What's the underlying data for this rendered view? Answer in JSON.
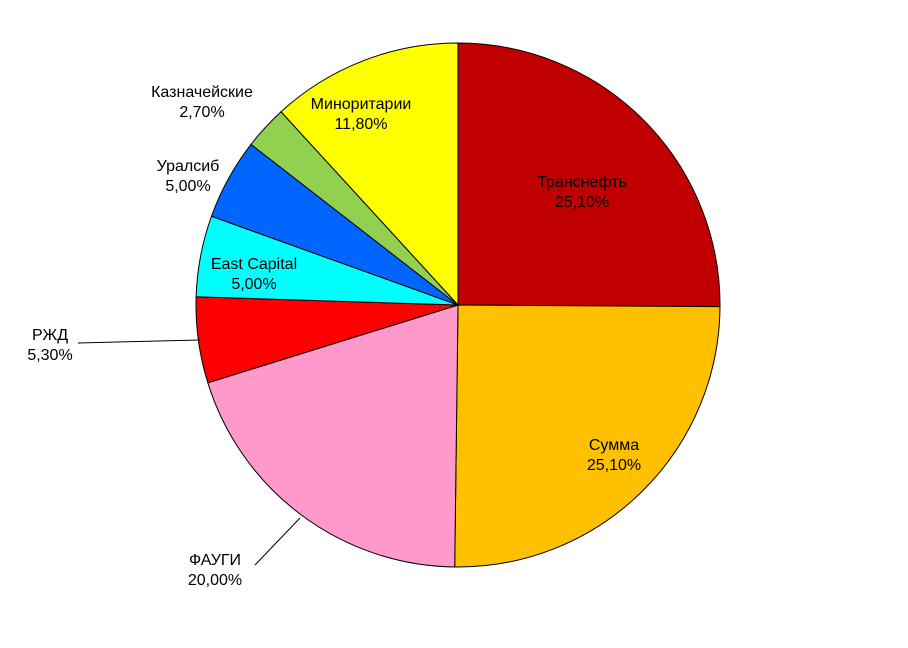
{
  "chart_data": {
    "type": "pie",
    "categories": [
      "Транснефть",
      "Сумма",
      "ФАУГИ",
      "РЖД",
      "East Capital",
      "Уралсиб",
      "Казначейские",
      "Миноритарии"
    ],
    "values": [
      25.1,
      25.1,
      20.0,
      5.3,
      5.0,
      5.0,
      2.7,
      11.8
    ],
    "value_labels": [
      "25,10%",
      "25,10%",
      "20,00%",
      "5,30%",
      "5,00%",
      "5,00%",
      "2,70%",
      "11,80%"
    ],
    "colors": [
      "#C00000",
      "#FFC000",
      "#FF99CC",
      "#FF0000",
      "#00FFFF",
      "#0066FF",
      "#92D050",
      "#FFFF00"
    ]
  }
}
